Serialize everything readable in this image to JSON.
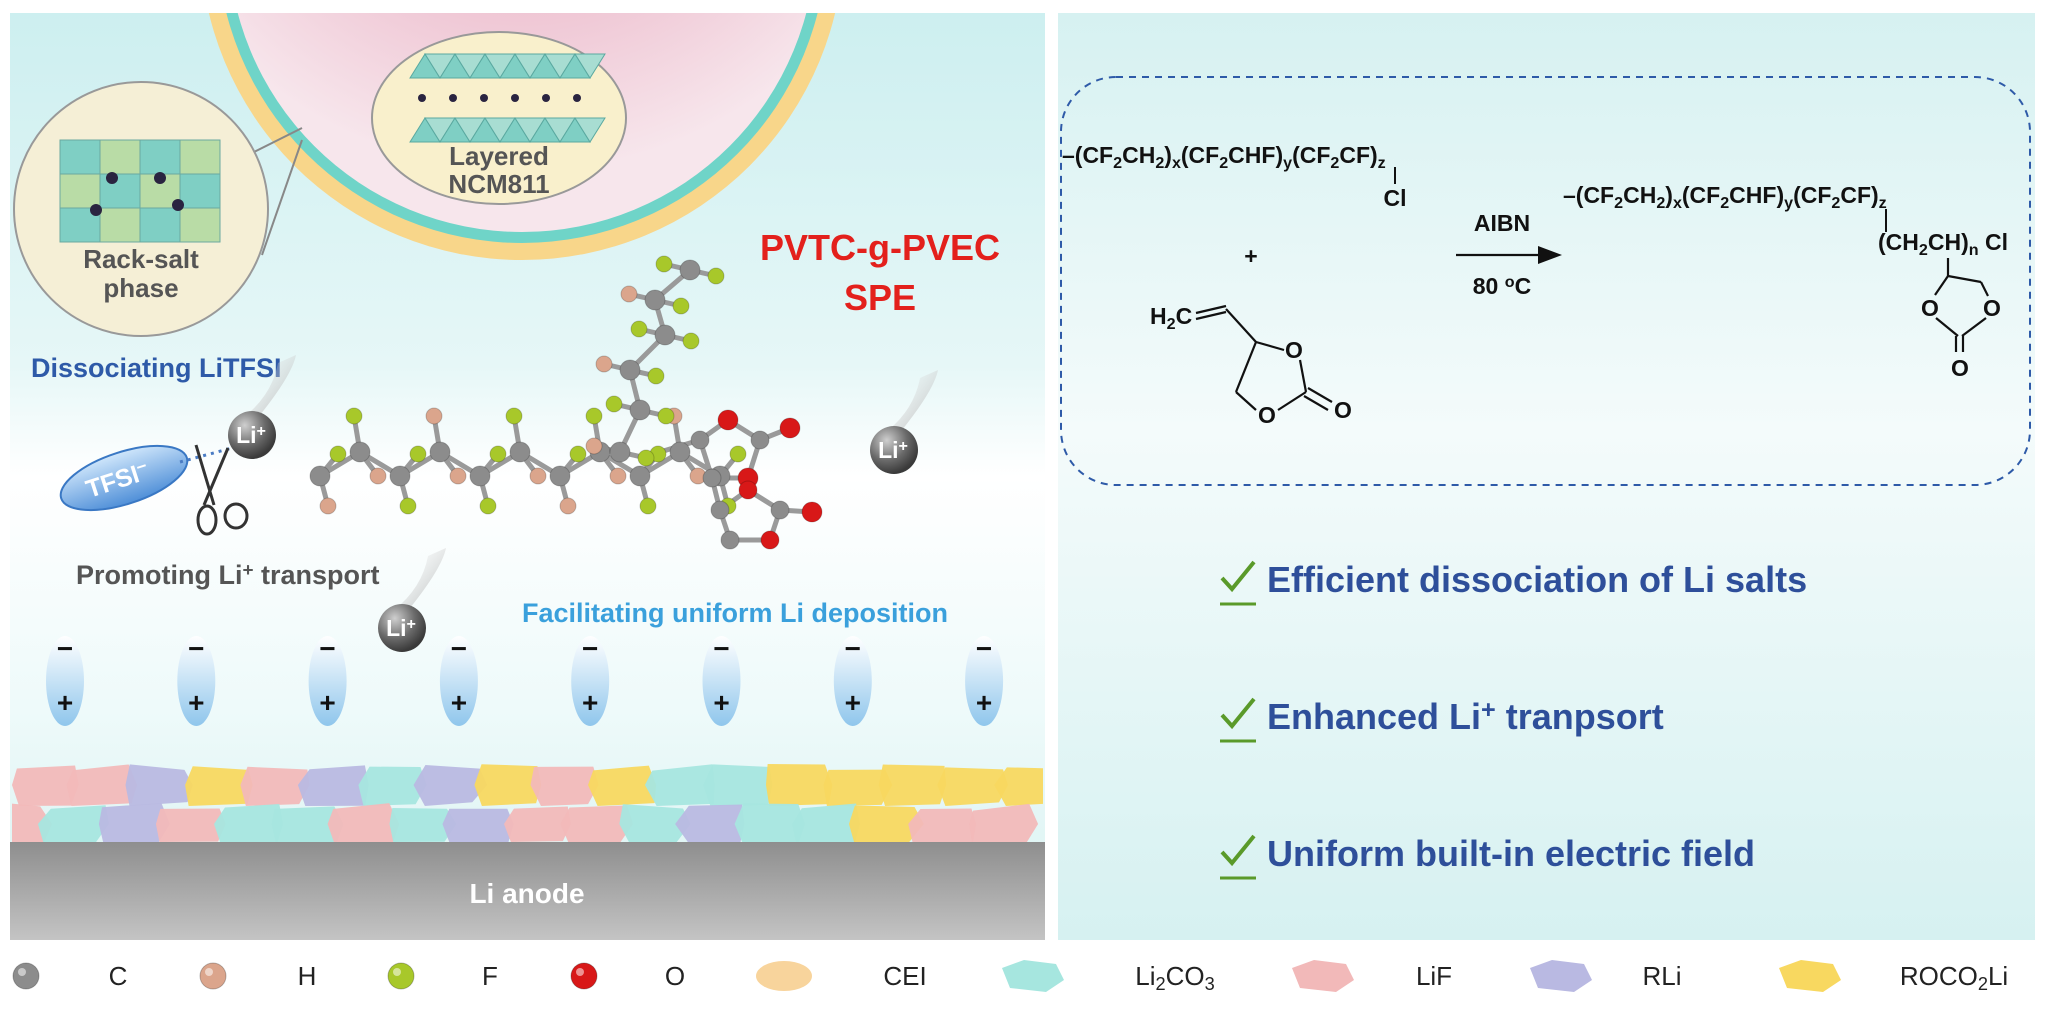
{
  "left": {
    "cathode_label": [
      "Layered",
      "NCM811"
    ],
    "rock_salt_label": [
      "Rack-salt",
      "phase"
    ],
    "electrolyte": [
      "PVTC-g-PVEC",
      "SPE"
    ],
    "dissociating": "Dissociating LiTFSI",
    "tfsi": [
      "TFSI",
      {
        "sup": "−"
      }
    ],
    "li_ion": [
      "Li",
      {
        "sup": "+"
      }
    ],
    "promoting": [
      "Promoting Li",
      {
        "sup": "+"
      },
      " transport"
    ],
    "facilitating": "Facilitating uniform Li deposition",
    "dipole": {
      "negative": "−",
      "positive": "+"
    },
    "anode": "Li anode"
  },
  "right": {
    "reactant": [
      "–(CF",
      {
        "sub": "2"
      },
      "CH",
      {
        "sub": "2"
      },
      ")",
      {
        "sub": "x"
      },
      "(CF",
      {
        "sub": "2"
      },
      "CHF)",
      {
        "sub": "y"
      },
      "(CF",
      {
        "sub": "2"
      },
      "CF)",
      {
        "sub": "z"
      }
    ],
    "substituent": "Cl",
    "plus": "+",
    "vinyl": [
      "H",
      {
        "sub": "2"
      },
      "C"
    ],
    "ring_oxygen": "O",
    "reagent": "AIBN",
    "condition": [
      "80 ",
      {
        "sup": "o"
      },
      "C"
    ],
    "product": [
      "–(CF",
      {
        "sub": "2"
      },
      "CH",
      {
        "sub": "2"
      },
      ")",
      {
        "sub": "x"
      },
      "(CF",
      {
        "sub": "2"
      },
      "CHF)",
      {
        "sub": "y"
      },
      "(CF",
      {
        "sub": "2"
      },
      "CF)",
      {
        "sub": "z"
      }
    ],
    "graft": [
      "(CH",
      {
        "sub": "2"
      },
      "CH)",
      {
        "sub": "n"
      },
      " Cl"
    ],
    "benefits": [
      [
        "Efficient dissociation of Li salts"
      ],
      [
        "Enhanced Li",
        {
          "sup": "+"
        },
        " tranpsort"
      ],
      [
        "Uniform built-in electric field"
      ]
    ]
  },
  "legend": [
    {
      "label": [
        "C"
      ],
      "color": "#8c8c8c",
      "shape": "atom"
    },
    {
      "label": [
        "H"
      ],
      "color": "#dba58c",
      "shape": "atom"
    },
    {
      "label": [
        "F"
      ],
      "color": "#a8c82a",
      "shape": "atom"
    },
    {
      "label": [
        "O"
      ],
      "color": "#d81818",
      "shape": "atom"
    },
    {
      "label": [
        "CEI"
      ],
      "color": "#f8d49c",
      "shape": "ellipse"
    },
    {
      "label": [
        "Li",
        {
          "sub": "2"
        },
        "CO",
        {
          "sub": "3"
        }
      ],
      "color": "#a6e6df",
      "shape": "flake"
    },
    {
      "label": [
        "LiF"
      ],
      "color": "#f2b9b9",
      "shape": "flake"
    },
    {
      "label": [
        "RLi"
      ],
      "color": "#b9b9e2",
      "shape": "flake"
    },
    {
      "label": [
        "ROCO",
        {
          "sub": "2"
        },
        "Li"
      ],
      "color": "#f8d860",
      "shape": "flake"
    }
  ]
}
